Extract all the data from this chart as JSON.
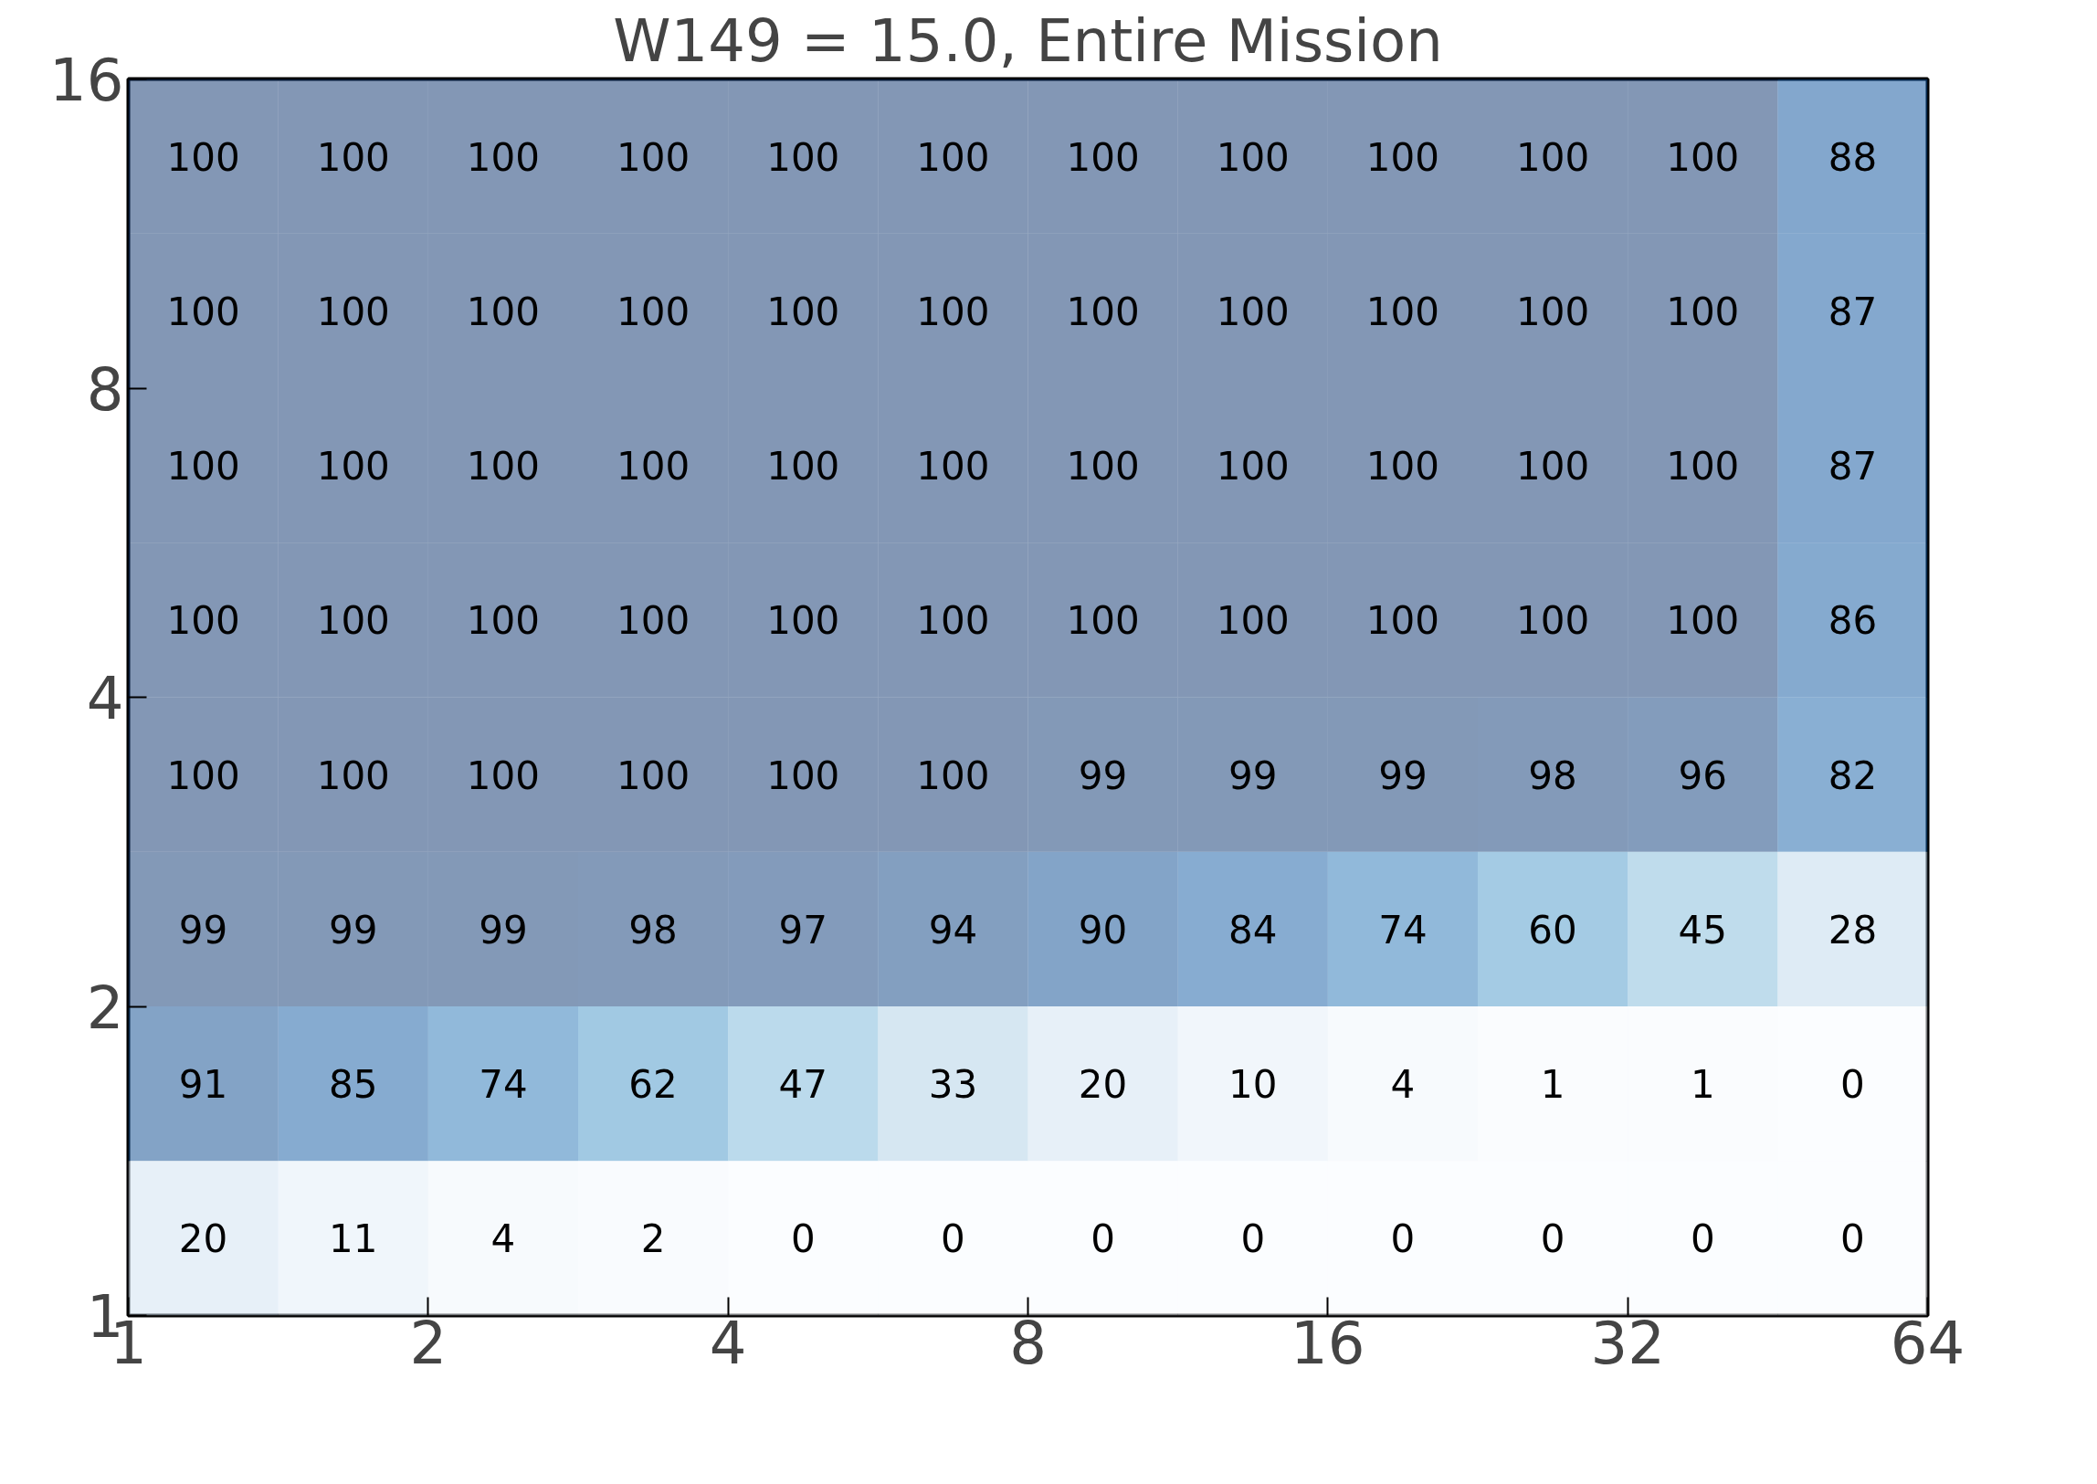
{
  "chart_data": {
    "type": "heatmap",
    "title": "W149 = 15.0, Entire Mission",
    "cells": [
      [
        100,
        100,
        100,
        100,
        100,
        100,
        100,
        100,
        100,
        100,
        100,
        88
      ],
      [
        100,
        100,
        100,
        100,
        100,
        100,
        100,
        100,
        100,
        100,
        100,
        87
      ],
      [
        100,
        100,
        100,
        100,
        100,
        100,
        100,
        100,
        100,
        100,
        100,
        87
      ],
      [
        100,
        100,
        100,
        100,
        100,
        100,
        100,
        100,
        100,
        100,
        100,
        86
      ],
      [
        100,
        100,
        100,
        100,
        100,
        100,
        99,
        99,
        99,
        98,
        96,
        82
      ],
      [
        99,
        99,
        99,
        98,
        97,
        94,
        90,
        84,
        74,
        60,
        45,
        28
      ],
      [
        91,
        85,
        74,
        62,
        47,
        33,
        20,
        10,
        4,
        1,
        1,
        0
      ],
      [
        20,
        11,
        4,
        2,
        0,
        0,
        0,
        0,
        0,
        0,
        0,
        0
      ]
    ],
    "data_labels": true,
    "log": "xy",
    "xlim": [
      1,
      64
    ],
    "xticks": [
      1,
      2,
      4,
      8,
      16,
      32,
      64
    ],
    "ylim": [
      1,
      16
    ],
    "yticks": [
      1,
      2,
      4,
      8,
      16
    ]
  }
}
